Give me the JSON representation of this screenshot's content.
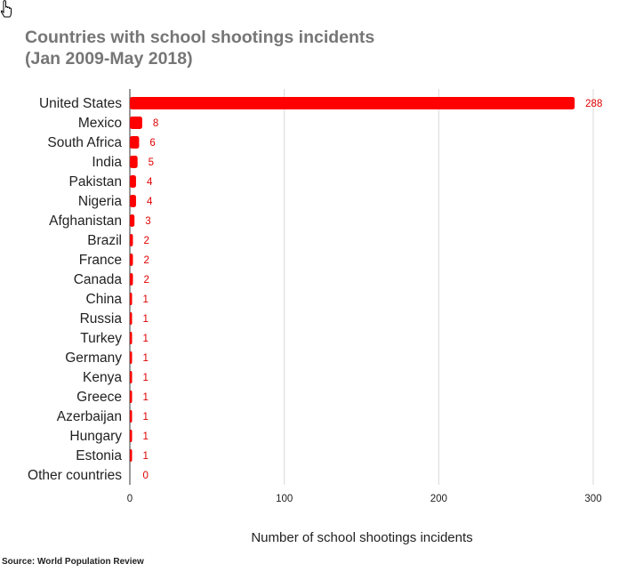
{
  "title_lines": [
    "Countries with school shootings incidents",
    "(Jan 2009-May 2018)"
  ],
  "source": "Source: World Population Review",
  "colors": {
    "bar": "#ff0000",
    "value_label": "#e00000",
    "grid": "#d9d9d9",
    "axis": "#333333",
    "title": "#767676"
  },
  "chart_data": {
    "type": "bar",
    "orientation": "horizontal",
    "title": "Countries with school shootings incidents (Jan 2009-May 2018)",
    "xlabel": "Number of school shootings incidents",
    "ylabel": "",
    "xlim": [
      0,
      300
    ],
    "xticks": [
      0,
      100,
      200,
      300
    ],
    "grid": true,
    "categories": [
      "United States",
      "Mexico",
      "South Africa",
      "India",
      "Pakistan",
      "Nigeria",
      "Afghanistan",
      "Brazil",
      "France",
      "Canada",
      "China",
      "Russia",
      "Turkey",
      "Germany",
      "Kenya",
      "Greece",
      "Azerbaijan",
      "Hungary",
      "Estonia",
      "Other countries"
    ],
    "values": [
      288,
      8,
      6,
      5,
      4,
      4,
      3,
      2,
      2,
      2,
      1,
      1,
      1,
      1,
      1,
      1,
      1,
      1,
      1,
      0
    ],
    "data_labels": true
  }
}
